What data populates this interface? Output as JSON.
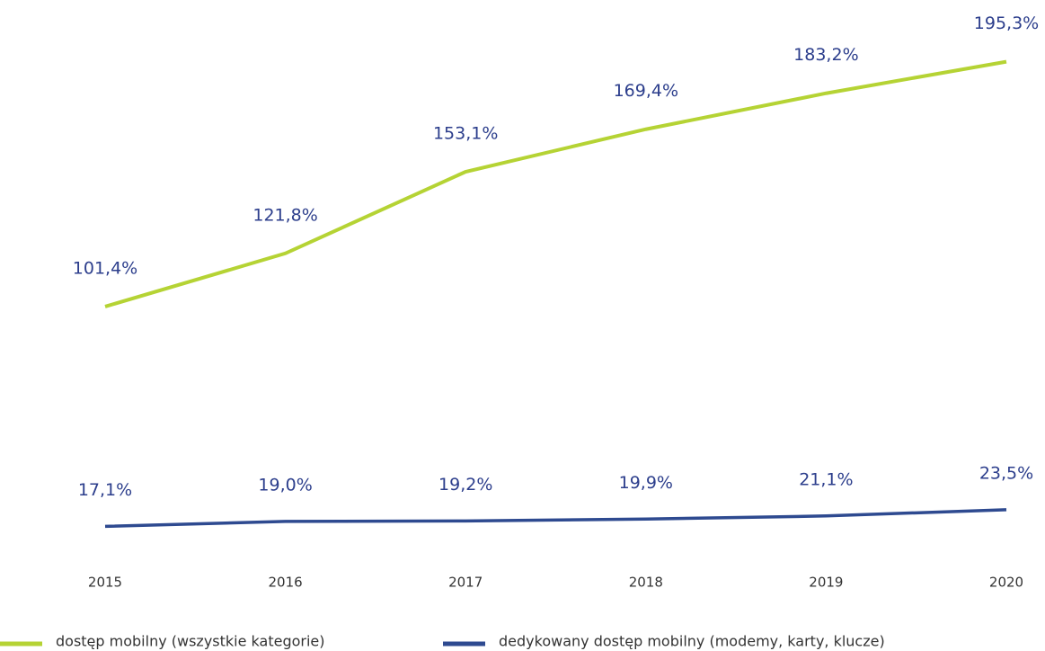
{
  "chart_data": {
    "type": "line",
    "categories": [
      "2015",
      "2016",
      "2017",
      "2018",
      "2019",
      "2020"
    ],
    "series": [
      {
        "name": "dostęp mobilny (wszystkie kategorie)",
        "color": "#b5d334",
        "values": [
          101.4,
          121.8,
          153.1,
          169.4,
          183.2,
          195.3
        ],
        "value_labels": [
          "101,4%",
          "121,8%",
          "153,1%",
          "169,4%",
          "183,2%",
          "195,3%"
        ]
      },
      {
        "name": "dedykowany dostęp mobilny (modemy, karty, klucze)",
        "color": "#2e4a90",
        "values": [
          17.1,
          19.0,
          19.2,
          19.9,
          21.1,
          23.5
        ],
        "value_labels": [
          "17,1%",
          "19,0%",
          "19,2%",
          "19,9%",
          "21,1%",
          "23,5%"
        ]
      }
    ],
    "ylim": [
      0,
      200
    ],
    "legend": "bottom"
  }
}
